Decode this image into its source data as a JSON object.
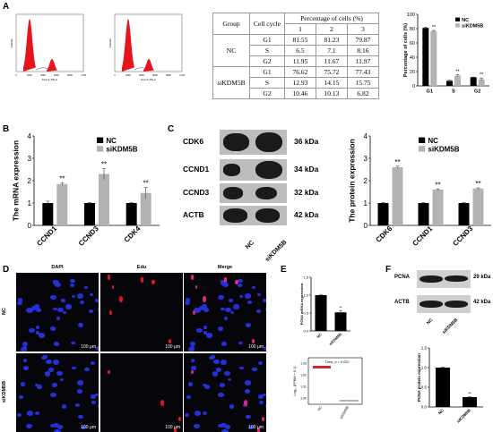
{
  "panels": {
    "a": "A",
    "b": "B",
    "c": "C",
    "d": "D",
    "e": "E",
    "f": "F"
  },
  "flow": {
    "ylabel": "Number",
    "xlabel": "FL2-A::PE-A",
    "ticks": [
      "0",
      "200K",
      "400K",
      "600K",
      "800K",
      "1.0M"
    ]
  },
  "table_a": {
    "h_group": "Group",
    "h_cycle": "Cell cycle",
    "h_pct": "Percentage of cells (%)",
    "reps": [
      "1",
      "2",
      "3"
    ],
    "groups": [
      {
        "name": "NC",
        "rows": [
          {
            "phase": "G1",
            "v": [
              "81.55",
              "81.23",
              "79.87"
            ]
          },
          {
            "phase": "S",
            "v": [
              "6.5",
              "7.1",
              "8.16"
            ]
          },
          {
            "phase": "G2",
            "v": [
              "11.95",
              "11.67",
              "11.97"
            ]
          }
        ]
      },
      {
        "name": "siKDM5B",
        "rows": [
          {
            "phase": "G1",
            "v": [
              "76.62",
              "75.72",
              "77.43"
            ]
          },
          {
            "phase": "S",
            "v": [
              "12.93",
              "14.15",
              "15.75"
            ]
          },
          {
            "phase": "G2",
            "v": [
              "10.46",
              "10.13",
              "6.82"
            ]
          }
        ]
      }
    ]
  },
  "legend": {
    "nc": "NC",
    "si": "siKDM5B"
  },
  "stars": "**",
  "colors": {
    "nc": "#000000",
    "si": "#b3b3b3",
    "red": "#e8141c"
  },
  "chart_data": [
    {
      "type": "bar",
      "panel": "A",
      "ylabel": "Percentage of cells (%)",
      "categories": [
        "G1",
        "S",
        "G2"
      ],
      "yticks": [
        "0",
        "20",
        "40",
        "60",
        "80",
        "100"
      ],
      "ylim": [
        0,
        100
      ],
      "series": [
        {
          "name": "NC",
          "values": [
            81,
            7,
            12
          ],
          "err": [
            1,
            0.8,
            0.3
          ]
        },
        {
          "name": "siKDM5B",
          "values": [
            76.6,
            14.3,
            9.1
          ],
          "err": [
            1,
            1.4,
            1.9
          ]
        }
      ]
    },
    {
      "type": "bar",
      "panel": "B",
      "ylabel": "The mRNA expression",
      "categories": [
        "CCND1",
        "CCND3",
        "CDK4"
      ],
      "yticks": [
        "0",
        "1",
        "2",
        "3",
        "4"
      ],
      "ylim": [
        0,
        4
      ],
      "series": [
        {
          "name": "NC",
          "values": [
            1,
            1,
            1
          ],
          "err": [
            0.08,
            0.03,
            0.03
          ]
        },
        {
          "name": "siKDM5B",
          "values": [
            1.85,
            2.3,
            1.45
          ],
          "err": [
            0.06,
            0.25,
            0.25
          ]
        }
      ]
    },
    {
      "type": "bar",
      "panel": "C",
      "ylabel": "The protein expression",
      "categories": [
        "CDK6",
        "CCND1",
        "CCND3"
      ],
      "yticks": [
        "0",
        "1",
        "2",
        "3",
        "4"
      ],
      "ylim": [
        0,
        4
      ],
      "series": [
        {
          "name": "NC",
          "values": [
            1,
            1,
            1
          ],
          "err": [
            0.02,
            0.02,
            0.02
          ]
        },
        {
          "name": "siKDM5B",
          "values": [
            2.6,
            1.6,
            1.65
          ],
          "err": [
            0.05,
            0.03,
            0.03
          ]
        }
      ]
    },
    {
      "type": "bar",
      "panel": "E",
      "ylabel": "PCNA mRNA expression",
      "categories": [
        "NC",
        "siKDM5B"
      ],
      "yticks": [
        "0.0",
        "0.5",
        "1.0",
        "1.5"
      ],
      "ylim": [
        0,
        1.5
      ],
      "series": [
        {
          "values": [
            1,
            0.52
          ],
          "err": [
            0.02,
            0.05
          ]
        }
      ]
    },
    {
      "type": "bar",
      "panel": "F",
      "ylabel": "PCNA protein expression",
      "categories": [
        "NC",
        "siKDM5B"
      ],
      "yticks": [
        "0.0",
        "0.5",
        "1.0",
        "1.5"
      ],
      "ylim": [
        0,
        1.5
      ],
      "series": [
        {
          "values": [
            1,
            0.25
          ],
          "err": [
            0.01,
            0.01
          ]
        }
      ]
    }
  ],
  "blot_c": {
    "proteins": [
      "CDK6",
      "CCND1",
      "CCND3",
      "ACTB"
    ],
    "kda": [
      "36 kDa",
      "34 kDa",
      "32 kDa",
      "42 kDa"
    ],
    "lanes": [
      "NC",
      "siKDM5B"
    ]
  },
  "blot_f": {
    "proteins": [
      "PCNA",
      "ACTB"
    ],
    "kda": [
      "29 kDa",
      "42 kDa"
    ],
    "lanes": [
      "NC",
      "siKDM5B"
    ]
  },
  "micro": {
    "cols": [
      "DAPI",
      "Edu",
      "Merge"
    ],
    "rows": [
      "NC",
      "siKDM5B"
    ],
    "scale": "100 μm"
  },
  "e_lower": {
    "ylabel": "Log₁₀ (FPKM + 0.1)",
    "stat": "T-test, p = 0.022",
    "yticks": [
      "1.90",
      "1.91",
      "1.92",
      "1.93"
    ],
    "cats": [
      "NC",
      "siKDM5B"
    ]
  }
}
